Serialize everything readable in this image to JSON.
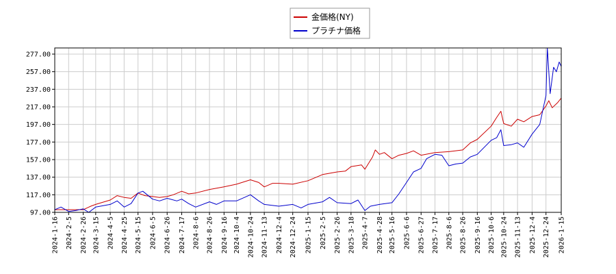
{
  "chart_data": {
    "type": "line",
    "title": "",
    "xlabel": "",
    "ylabel": "",
    "x_start": "2024-01-16",
    "x_end": "2026-01-15",
    "ylim": [
      97,
      284
    ],
    "yticks": [
      97,
      117,
      137,
      157,
      177,
      197,
      217,
      237,
      257,
      277
    ],
    "ytick_labels": [
      "97.00",
      "117.00",
      "137.00",
      "157.00",
      "177.00",
      "197.00",
      "217.00",
      "237.00",
      "257.00",
      "277.00"
    ],
    "xtick_labels": [
      "2024-1-16",
      "2024-2-5",
      "2024-2-26",
      "2024-3-15",
      "2024-4-5",
      "2024-4-25",
      "2024-5-15",
      "2024-6-5",
      "2024-6-26",
      "2024-7-17",
      "2024-8-6",
      "2024-8-26",
      "2024-9-16",
      "2024-10-4",
      "2024-10-24",
      "2024-11-13",
      "2024-12-4",
      "2024-12-24",
      "2025-1-15",
      "2025-2-5",
      "2025-2-26",
      "2025-3-18",
      "2025-4-7",
      "2025-4-28",
      "2025-5-16",
      "2025-6-6",
      "2025-6-27",
      "2025-7-17",
      "2025-8-6",
      "2025-8-26",
      "2025-9-16",
      "2025-10-6",
      "2025-10-24",
      "2025-11-13",
      "2025-12-4",
      "2025-12-24",
      "2026-1-15"
    ],
    "grid": true,
    "legend_position": "top-center",
    "series": [
      {
        "name": "金価格(NY)",
        "color": "#cc0000",
        "points": [
          [
            "2024-01-16",
            100
          ],
          [
            "2024-02-05",
            100
          ],
          [
            "2024-02-26",
            100
          ],
          [
            "2024-03-08",
            104
          ],
          [
            "2024-03-15",
            106
          ],
          [
            "2024-04-05",
            111
          ],
          [
            "2024-04-15",
            116
          ],
          [
            "2024-04-25",
            114
          ],
          [
            "2024-05-05",
            113
          ],
          [
            "2024-05-15",
            119
          ],
          [
            "2024-05-25",
            116
          ],
          [
            "2024-06-05",
            115
          ],
          [
            "2024-06-15",
            114
          ],
          [
            "2024-06-26",
            115
          ],
          [
            "2024-07-05",
            117
          ],
          [
            "2024-07-17",
            121
          ],
          [
            "2024-07-27",
            118
          ],
          [
            "2024-08-06",
            119
          ],
          [
            "2024-08-26",
            123
          ],
          [
            "2024-09-16",
            126
          ],
          [
            "2024-10-04",
            129
          ],
          [
            "2024-10-24",
            134
          ],
          [
            "2024-11-05",
            131
          ],
          [
            "2024-11-13",
            126
          ],
          [
            "2024-11-25",
            130
          ],
          [
            "2024-12-04",
            130
          ],
          [
            "2024-12-24",
            129
          ],
          [
            "2025-01-15",
            133
          ],
          [
            "2025-02-05",
            140
          ],
          [
            "2025-02-26",
            143
          ],
          [
            "2025-03-10",
            144
          ],
          [
            "2025-03-18",
            149
          ],
          [
            "2025-04-02",
            151
          ],
          [
            "2025-04-07",
            146
          ],
          [
            "2025-04-18",
            160
          ],
          [
            "2025-04-22",
            168
          ],
          [
            "2025-04-28",
            163
          ],
          [
            "2025-05-05",
            165
          ],
          [
            "2025-05-16",
            158
          ],
          [
            "2025-05-26",
            162
          ],
          [
            "2025-06-06",
            164
          ],
          [
            "2025-06-16",
            167
          ],
          [
            "2025-06-27",
            162
          ],
          [
            "2025-07-17",
            165
          ],
          [
            "2025-08-06",
            166
          ],
          [
            "2025-08-26",
            168
          ],
          [
            "2025-09-06",
            176
          ],
          [
            "2025-09-16",
            180
          ],
          [
            "2025-10-06",
            195
          ],
          [
            "2025-10-14",
            205
          ],
          [
            "2025-10-20",
            212
          ],
          [
            "2025-10-24",
            198
          ],
          [
            "2025-11-04",
            195
          ],
          [
            "2025-11-13",
            203
          ],
          [
            "2025-11-22",
            200
          ],
          [
            "2025-12-04",
            206
          ],
          [
            "2025-12-15",
            208
          ],
          [
            "2025-12-24",
            218
          ],
          [
            "2025-12-28",
            224
          ],
          [
            "2026-01-02",
            216
          ],
          [
            "2026-01-10",
            222
          ],
          [
            "2026-01-15",
            227
          ]
        ]
      },
      {
        "name": "プラチナ価格",
        "color": "#0000cc",
        "points": [
          [
            "2024-01-16",
            100
          ],
          [
            "2024-01-25",
            103
          ],
          [
            "2024-02-05",
            98
          ],
          [
            "2024-02-15",
            99
          ],
          [
            "2024-02-26",
            101
          ],
          [
            "2024-03-05",
            97
          ],
          [
            "2024-03-15",
            103
          ],
          [
            "2024-04-05",
            106
          ],
          [
            "2024-04-15",
            110
          ],
          [
            "2024-04-25",
            103
          ],
          [
            "2024-05-05",
            107
          ],
          [
            "2024-05-15",
            119
          ],
          [
            "2024-05-22",
            121
          ],
          [
            "2024-06-05",
            112
          ],
          [
            "2024-06-15",
            110
          ],
          [
            "2024-06-26",
            113
          ],
          [
            "2024-07-10",
            110
          ],
          [
            "2024-07-17",
            112
          ],
          [
            "2024-07-27",
            107
          ],
          [
            "2024-08-06",
            103
          ],
          [
            "2024-08-26",
            109
          ],
          [
            "2024-09-05",
            106
          ],
          [
            "2024-09-16",
            110
          ],
          [
            "2024-10-04",
            110
          ],
          [
            "2024-10-24",
            117
          ],
          [
            "2024-11-05",
            110
          ],
          [
            "2024-11-13",
            106
          ],
          [
            "2024-12-04",
            104
          ],
          [
            "2024-12-24",
            106
          ],
          [
            "2025-01-05",
            102
          ],
          [
            "2025-01-15",
            106
          ],
          [
            "2025-02-05",
            109
          ],
          [
            "2025-02-15",
            114
          ],
          [
            "2025-02-26",
            108
          ],
          [
            "2025-03-18",
            107
          ],
          [
            "2025-03-28",
            111
          ],
          [
            "2025-04-07",
            99
          ],
          [
            "2025-04-15",
            104
          ],
          [
            "2025-04-28",
            106
          ],
          [
            "2025-05-16",
            108
          ],
          [
            "2025-05-26",
            118
          ],
          [
            "2025-06-06",
            131
          ],
          [
            "2025-06-16",
            143
          ],
          [
            "2025-06-27",
            147
          ],
          [
            "2025-07-05",
            158
          ],
          [
            "2025-07-17",
            163
          ],
          [
            "2025-07-27",
            162
          ],
          [
            "2025-08-06",
            150
          ],
          [
            "2025-08-16",
            152
          ],
          [
            "2025-08-26",
            153
          ],
          [
            "2025-09-06",
            160
          ],
          [
            "2025-09-16",
            163
          ],
          [
            "2025-10-06",
            179
          ],
          [
            "2025-10-14",
            182
          ],
          [
            "2025-10-20",
            191
          ],
          [
            "2025-10-24",
            173
          ],
          [
            "2025-11-04",
            174
          ],
          [
            "2025-11-13",
            176
          ],
          [
            "2025-11-22",
            171
          ],
          [
            "2025-12-04",
            186
          ],
          [
            "2025-12-15",
            197
          ],
          [
            "2025-12-24",
            230
          ],
          [
            "2025-12-26",
            284
          ],
          [
            "2025-12-30",
            232
          ],
          [
            "2026-01-04",
            262
          ],
          [
            "2026-01-08",
            257
          ],
          [
            "2026-01-12",
            268
          ],
          [
            "2026-01-15",
            263
          ]
        ]
      }
    ]
  }
}
